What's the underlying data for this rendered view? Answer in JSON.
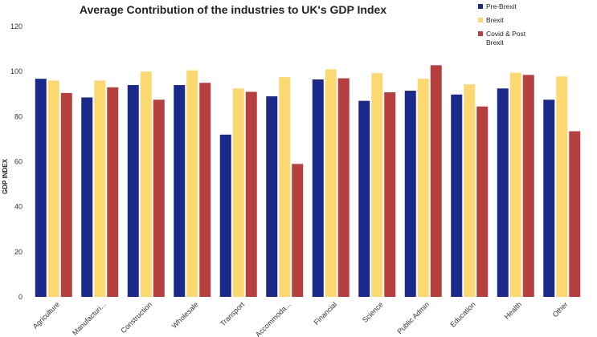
{
  "chart_data": {
    "type": "bar",
    "title": "Average Contribution of the industries to UK's GDP Index",
    "xlabel": "",
    "ylabel": "GDP INDEX",
    "ylim": [
      0,
      120
    ],
    "yticks": [
      0,
      20,
      40,
      60,
      80,
      100,
      120
    ],
    "grid": false,
    "legend_position": "top-right",
    "categories": [
      "Agriculture",
      "Manufacturi...",
      "Construction",
      "Wholesale",
      "Transport",
      "Accommoda...",
      "Financial",
      "Science",
      "Public Admin",
      "Education",
      "Health",
      "Other"
    ],
    "series": [
      {
        "name": "Pre-Brexit",
        "color": "#1b2a8a",
        "values": [
          96.8,
          88.5,
          94.0,
          94.0,
          72.0,
          89.0,
          96.5,
          87.0,
          91.5,
          89.8,
          92.5,
          87.5
        ]
      },
      {
        "name": "Brexit",
        "color": "#fcd870",
        "values": [
          96.0,
          96.0,
          100.0,
          100.5,
          92.5,
          97.5,
          101.0,
          99.3,
          96.8,
          94.3,
          99.5,
          97.8
        ]
      },
      {
        "name": "Covid & Post Brexit",
        "color": "#b5403f",
        "values": [
          90.5,
          93.0,
          87.5,
          95.0,
          91.0,
          59.0,
          97.0,
          90.8,
          102.8,
          84.5,
          98.5,
          73.5
        ]
      }
    ]
  }
}
